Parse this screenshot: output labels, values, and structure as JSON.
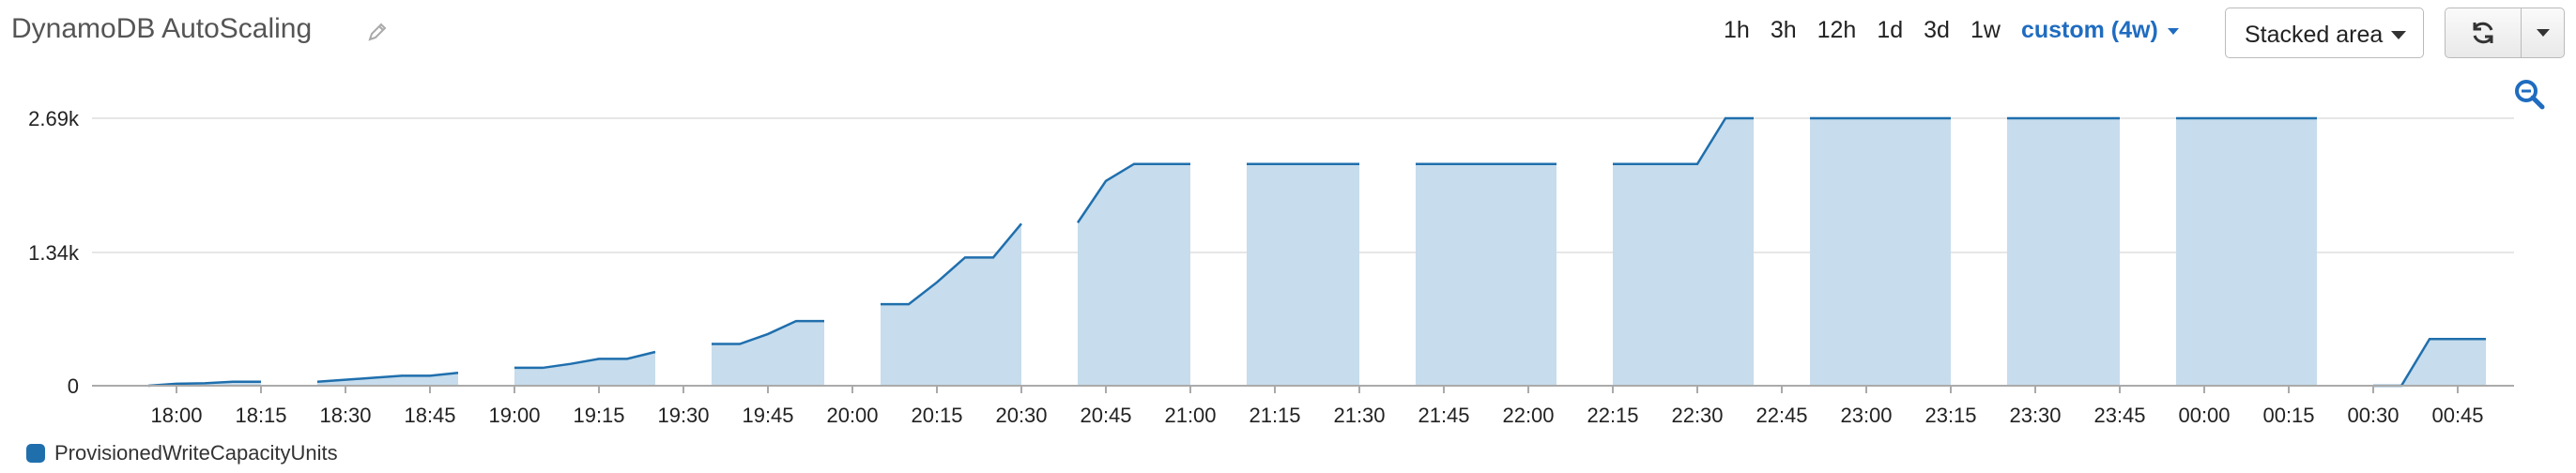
{
  "widget": {
    "title": "DynamoDB AutoScaling",
    "pencil_icon": "pencil-icon",
    "time_ranges": [
      "1h",
      "3h",
      "12h",
      "1d",
      "3d",
      "1w"
    ],
    "custom_range": "custom (4w)",
    "chart_type_select": "Stacked area",
    "refresh_icon": "refresh-icon",
    "zoom_icon": "zoom-out-icon"
  },
  "colors": {
    "line": "#1f6fad",
    "fill": "#c7dcec",
    "grid": "#e6e6e6",
    "axis": "#aaaaaa"
  },
  "chart_data": {
    "type": "area",
    "title": "",
    "xlabel": "",
    "ylabel": "",
    "ylim": [
      0,
      2690
    ],
    "yticks": [
      0,
      1340,
      2690
    ],
    "ytick_labels": [
      "0",
      "1.34k",
      "2.69k"
    ],
    "x_start": "17:45",
    "x_end": "00:55",
    "xtick_labels": [
      "18:00",
      "18:15",
      "18:30",
      "18:45",
      "19:00",
      "19:15",
      "19:30",
      "19:45",
      "20:00",
      "20:15",
      "20:30",
      "20:45",
      "21:00",
      "21:15",
      "21:30",
      "21:45",
      "22:00",
      "22:15",
      "22:30",
      "22:45",
      "23:00",
      "23:15",
      "23:30",
      "23:45",
      "00:00",
      "00:15",
      "00:30",
      "00:45"
    ],
    "grid": true,
    "legend": "bottom-left",
    "series": [
      {
        "name": "ProvisionedWriteCapacityUnits",
        "segments": [
          [
            [
              "17:55",
              0
            ],
            [
              "18:00",
              20
            ],
            [
              "18:05",
              25
            ],
            [
              "18:10",
              40
            ],
            [
              "18:15",
              40
            ]
          ],
          [
            [
              "18:25",
              40
            ],
            [
              "18:30",
              60
            ],
            [
              "18:35",
              80
            ],
            [
              "18:40",
              100
            ],
            [
              "18:45",
              100
            ],
            [
              "18:50",
              130
            ]
          ],
          [
            [
              "19:00",
              180
            ],
            [
              "19:05",
              180
            ],
            [
              "19:10",
              220
            ],
            [
              "19:15",
              270
            ],
            [
              "19:20",
              270
            ],
            [
              "19:25",
              340
            ]
          ],
          [
            [
              "19:35",
              420
            ],
            [
              "19:40",
              420
            ],
            [
              "19:45",
              520
            ],
            [
              "19:50",
              650
            ],
            [
              "19:55",
              650
            ]
          ],
          [
            [
              "20:05",
              820
            ],
            [
              "20:10",
              820
            ],
            [
              "20:15",
              1040
            ],
            [
              "20:20",
              1290
            ],
            [
              "20:25",
              1290
            ],
            [
              "20:30",
              1630
            ]
          ],
          [
            [
              "20:40",
              1640
            ],
            [
              "20:45",
              2060
            ],
            [
              "20:50",
              2230
            ],
            [
              "21:00",
              2230
            ]
          ],
          [
            [
              "21:10",
              2230
            ],
            [
              "21:30",
              2230
            ]
          ],
          [
            [
              "21:40",
              2230
            ],
            [
              "22:05",
              2230
            ]
          ],
          [
            [
              "22:15",
              2230
            ],
            [
              "22:30",
              2230
            ],
            [
              "22:35",
              2690
            ],
            [
              "22:40",
              2690
            ]
          ],
          [
            [
              "22:50",
              2690
            ],
            [
              "23:15",
              2690
            ]
          ],
          [
            [
              "23:25",
              2690
            ],
            [
              "23:45",
              2690
            ]
          ],
          [
            [
              "23:55",
              2690
            ],
            [
              "00:20",
              2690
            ]
          ],
          [
            [
              "00:30",
              0
            ],
            [
              "00:35",
              0
            ],
            [
              "00:40",
              470
            ],
            [
              "00:50",
              470
            ]
          ]
        ]
      }
    ]
  }
}
